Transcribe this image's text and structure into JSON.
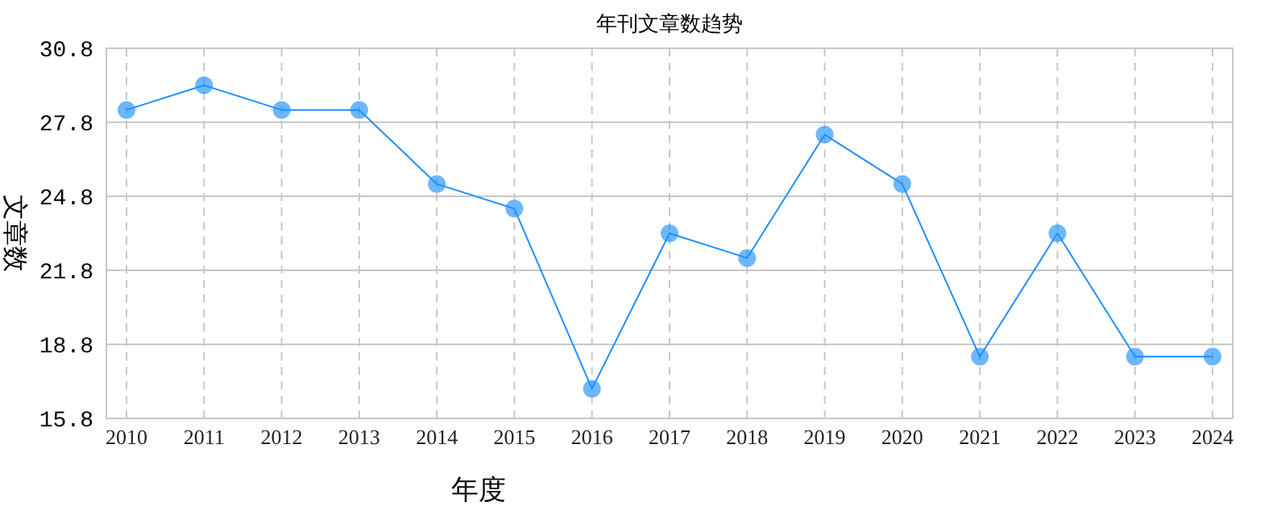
{
  "chart_data": {
    "type": "line",
    "title": "年刊文章数趋势",
    "xlabel": "年度",
    "ylabel": "文章数",
    "categories": [
      "2010",
      "2011",
      "2012",
      "2013",
      "2014",
      "2015",
      "2016",
      "2017",
      "2018",
      "2019",
      "2020",
      "2021",
      "2022",
      "2023",
      "2024"
    ],
    "series": [
      {
        "color": "#1e90ff",
        "values": [
          28.3,
          29.3,
          28.3,
          28.3,
          25.3,
          24.3,
          17.0,
          23.3,
          22.3,
          27.3,
          25.3,
          18.3,
          23.3,
          18.3,
          18.3
        ]
      }
    ],
    "ylim": [
      15.8,
      30.8
    ],
    "yticks": [
      15.8,
      18.8,
      21.8,
      24.8,
      27.8,
      30.8
    ],
    "grid": true,
    "marker": "circle",
    "line_style": "solid"
  }
}
